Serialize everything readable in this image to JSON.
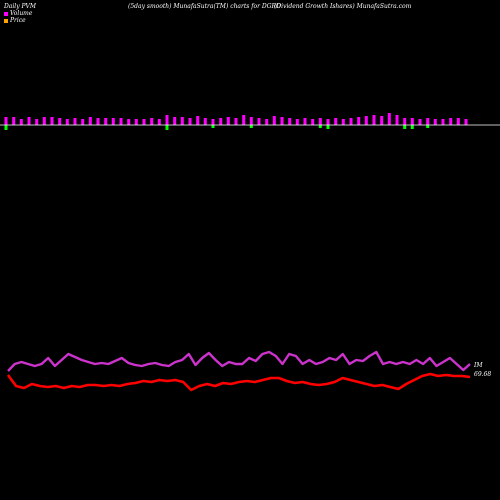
{
  "header": {
    "left": "Daily PVM",
    "center": "(5day smooth) MunafaSutra(TM) charts for DGRO",
    "right": "(Dividend Growth Ishares) MunafaSutra.com"
  },
  "legend": [
    {
      "label": "Volume",
      "color": "#ff00ff"
    },
    {
      "label": "Price",
      "color": "#ffa500"
    }
  ],
  "colors": {
    "volume_up": "#ff00ff",
    "volume_down": "#00ff00",
    "volume_baseline": "#ffffff",
    "pvm_line": "#cc33cc",
    "price_line": "#ff0000"
  },
  "chart_data": {
    "type": "bar",
    "volume_bars": [
      {
        "v": 8,
        "d": -5
      },
      {
        "v": 8,
        "d": 0
      },
      {
        "v": 6,
        "d": 0
      },
      {
        "v": 8,
        "d": 0
      },
      {
        "v": 6,
        "d": 0
      },
      {
        "v": 8,
        "d": 0
      },
      {
        "v": 8,
        "d": 0
      },
      {
        "v": 7,
        "d": 0
      },
      {
        "v": 6,
        "d": 0
      },
      {
        "v": 7,
        "d": 0
      },
      {
        "v": 6,
        "d": 0
      },
      {
        "v": 8,
        "d": 0
      },
      {
        "v": 7,
        "d": 0
      },
      {
        "v": 7,
        "d": 0
      },
      {
        "v": 7,
        "d": 0
      },
      {
        "v": 7,
        "d": 0
      },
      {
        "v": 6,
        "d": 0
      },
      {
        "v": 6,
        "d": 0
      },
      {
        "v": 6,
        "d": 0
      },
      {
        "v": 7,
        "d": 0
      },
      {
        "v": 6,
        "d": 0
      },
      {
        "v": 10,
        "d": -5
      },
      {
        "v": 8,
        "d": 0
      },
      {
        "v": 8,
        "d": 0
      },
      {
        "v": 7,
        "d": 0
      },
      {
        "v": 9,
        "d": 0
      },
      {
        "v": 7,
        "d": 0
      },
      {
        "v": 6,
        "d": -3
      },
      {
        "v": 7,
        "d": 0
      },
      {
        "v": 8,
        "d": 0
      },
      {
        "v": 7,
        "d": 0
      },
      {
        "v": 10,
        "d": 0
      },
      {
        "v": 8,
        "d": -3
      },
      {
        "v": 7,
        "d": 0
      },
      {
        "v": 6,
        "d": 0
      },
      {
        "v": 9,
        "d": 0
      },
      {
        "v": 8,
        "d": 0
      },
      {
        "v": 7,
        "d": 0
      },
      {
        "v": 6,
        "d": 0
      },
      {
        "v": 7,
        "d": 0
      },
      {
        "v": 6,
        "d": 0
      },
      {
        "v": 7,
        "d": -3
      },
      {
        "v": 6,
        "d": -4
      },
      {
        "v": 7,
        "d": 0
      },
      {
        "v": 6,
        "d": 0
      },
      {
        "v": 7,
        "d": 0
      },
      {
        "v": 8,
        "d": 0
      },
      {
        "v": 9,
        "d": 0
      },
      {
        "v": 10,
        "d": 0
      },
      {
        "v": 9,
        "d": 0
      },
      {
        "v": 12,
        "d": 0
      },
      {
        "v": 10,
        "d": 0
      },
      {
        "v": 7,
        "d": -4
      },
      {
        "v": 7,
        "d": -4
      },
      {
        "v": 6,
        "d": 0
      },
      {
        "v": 7,
        "d": -3
      },
      {
        "v": 6,
        "d": 0
      },
      {
        "v": 6,
        "d": 0
      },
      {
        "v": 7,
        "d": 0
      },
      {
        "v": 7,
        "d": 0
      },
      {
        "v": 6,
        "d": 0
      }
    ],
    "pvm_line": [
      371,
      364,
      362,
      364,
      366,
      364,
      358,
      366,
      360,
      354,
      357,
      360,
      362,
      364,
      363,
      364,
      361,
      358,
      363,
      365,
      366,
      364,
      363,
      365,
      366,
      362,
      360,
      354,
      365,
      358,
      353,
      360,
      366,
      362,
      364,
      364,
      358,
      361,
      354,
      352,
      356,
      364,
      354,
      356,
      364,
      360,
      364,
      362,
      358,
      360,
      354,
      364,
      360,
      361,
      356,
      352,
      364,
      362,
      364,
      362,
      364,
      360,
      364,
      358,
      366,
      362,
      358,
      364,
      370,
      364
    ],
    "price_line": [
      375,
      386,
      388,
      384,
      386,
      387,
      386,
      388,
      386,
      387,
      385,
      385,
      386,
      385,
      386,
      384,
      383,
      381,
      382,
      380,
      381,
      380,
      382,
      390,
      386,
      384,
      386,
      383,
      384,
      382,
      381,
      382,
      380,
      378,
      378,
      381,
      383,
      382,
      384,
      385,
      384,
      382,
      378,
      380,
      382,
      384,
      386,
      385,
      387,
      389,
      384,
      380,
      376,
      374,
      376,
      375,
      376,
      376,
      377
    ],
    "price_label": "69.68",
    "pvm_label": "IM"
  }
}
